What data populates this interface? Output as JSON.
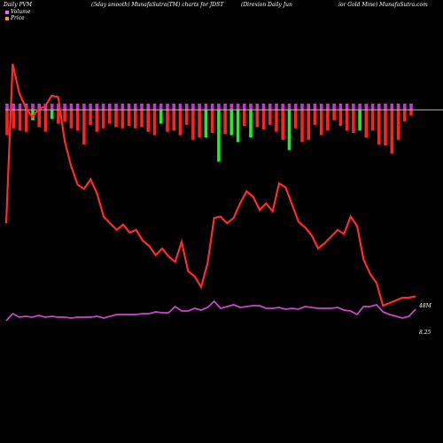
{
  "header": {
    "left": "Daily PVM",
    "smooth": "(5day smooth) MunafaSutra(TM) charts for JDST",
    "company_a": "(Direxion  Daily Jun",
    "company_b": "ior Gold Mine) MunafaSutra.com"
  },
  "legend": {
    "volume_label": "Volume",
    "volume_color": "#ee66ee",
    "price_label": "Price",
    "price_color": "#ff9933"
  },
  "chart_data": {
    "type": "line",
    "ticker": "JDST",
    "volume_axis_label": "48M",
    "price_axis_label": "8.25",
    "colors": {
      "price": "#ff2a2a",
      "volume_line": "#cc44cc",
      "bar_up": "#22ee22",
      "bar_down": "#ff2222",
      "bar_top": "#cc33cc",
      "baseline": "#bbbbbb"
    },
    "series": [
      {
        "values": [
          14.6,
          26.6,
          24.4,
          23.3,
          22.6,
          23.2,
          23.4,
          24.2,
          24.1,
          20.8,
          18.9,
          17.5,
          17.2,
          17.9,
          16.8,
          15.1,
          14.6,
          14.1,
          14.5,
          13.9,
          14.1,
          13.3,
          12.9,
          12.2,
          12.7,
          12.1,
          11.7,
          13.2,
          11.0,
          10.6,
          9.8,
          11.6,
          15.0,
          15.1,
          14.6,
          15.0,
          16.1,
          17.0,
          16.6,
          15.6,
          16.1,
          15.5,
          17.6,
          17.3,
          16.0,
          14.7,
          14.3,
          13.7,
          12.7,
          13.1,
          13.6,
          14.1,
          13.8,
          15.1,
          14.4,
          11.9,
          10.8,
          10.1,
          8.4,
          8.6,
          8.8,
          9.0,
          9.0,
          9.1
        ]
      },
      {
        "values": [
          1.2,
          2.0,
          1.6,
          1.7,
          1.6,
          1.8,
          1.6,
          1.7,
          1.6,
          1.6,
          1.5,
          1.6,
          1.6,
          1.6,
          1.7,
          1.5,
          1.7,
          1.9,
          1.9,
          1.9,
          1.9,
          2.0,
          2.0,
          2.2,
          2.1,
          2.1,
          2.8,
          2.3,
          2.3,
          2.6,
          2.4,
          2.7,
          3.4,
          2.6,
          2.8,
          3.0,
          2.7,
          2.8,
          2.9,
          2.9,
          2.6,
          2.6,
          2.7,
          2.5,
          2.6,
          2.5,
          2.8,
          2.7,
          2.6,
          2.6,
          2.6,
          2.7,
          2.4,
          2.3,
          1.9,
          2.8,
          2.8,
          3.0,
          2.2,
          1.9,
          1.7,
          1.5,
          1.7,
          2.5
        ]
      }
    ],
    "volume_bars": [
      {
        "v": 2.2,
        "up": false
      },
      {
        "v": 1.6,
        "up": false
      },
      {
        "v": 1.8,
        "up": false
      },
      {
        "v": 1.9,
        "up": false
      },
      {
        "v": 0.9,
        "up": true
      },
      {
        "v": 1.5,
        "up": false
      },
      {
        "v": 1.9,
        "up": false
      },
      {
        "v": 0.8,
        "up": true
      },
      {
        "v": 1.2,
        "up": false
      },
      {
        "v": 1.0,
        "up": false
      },
      {
        "v": 1.6,
        "up": false
      },
      {
        "v": 1.8,
        "up": false
      },
      {
        "v": 3.0,
        "up": false
      },
      {
        "v": 1.3,
        "up": false
      },
      {
        "v": 1.9,
        "up": false
      },
      {
        "v": 1.6,
        "up": false
      },
      {
        "v": 1.2,
        "up": false
      },
      {
        "v": 1.5,
        "up": false
      },
      {
        "v": 1.6,
        "up": false
      },
      {
        "v": 1.4,
        "up": false
      },
      {
        "v": 1.6,
        "up": false
      },
      {
        "v": 1.5,
        "up": false
      },
      {
        "v": 1.9,
        "up": false
      },
      {
        "v": 2.2,
        "up": false
      },
      {
        "v": 1.2,
        "up": true
      },
      {
        "v": 1.9,
        "up": false
      },
      {
        "v": 1.8,
        "up": false
      },
      {
        "v": 2.2,
        "up": false
      },
      {
        "v": 1.3,
        "up": false
      },
      {
        "v": 2.6,
        "up": false
      },
      {
        "v": 2.4,
        "up": false
      },
      {
        "v": 2.4,
        "up": true
      },
      {
        "v": 2.0,
        "up": false
      },
      {
        "v": 4.5,
        "up": true
      },
      {
        "v": 2.1,
        "up": false
      },
      {
        "v": 2.2,
        "up": true
      },
      {
        "v": 2.8,
        "up": true
      },
      {
        "v": 1.4,
        "up": false
      },
      {
        "v": 2.4,
        "up": true
      },
      {
        "v": 1.5,
        "up": false
      },
      {
        "v": 1.7,
        "up": false
      },
      {
        "v": 1.3,
        "up": false
      },
      {
        "v": 1.9,
        "up": false
      },
      {
        "v": 2.6,
        "up": false
      },
      {
        "v": 3.5,
        "up": true
      },
      {
        "v": 1.6,
        "up": false
      },
      {
        "v": 2.8,
        "up": false
      },
      {
        "v": 2.6,
        "up": false
      },
      {
        "v": 1.3,
        "up": false
      },
      {
        "v": 2.2,
        "up": false
      },
      {
        "v": 1.8,
        "up": false
      },
      {
        "v": 0.9,
        "up": false
      },
      {
        "v": 1.4,
        "up": false
      },
      {
        "v": 1.8,
        "up": false
      },
      {
        "v": 2.0,
        "up": false
      },
      {
        "v": 1.8,
        "up": true
      },
      {
        "v": 2.4,
        "up": false
      },
      {
        "v": 1.8,
        "up": false
      },
      {
        "v": 3.0,
        "up": false
      },
      {
        "v": 3.1,
        "up": false
      },
      {
        "v": 3.8,
        "up": false
      },
      {
        "v": 2.6,
        "up": false
      },
      {
        "v": 1.0,
        "up": false
      },
      {
        "v": 0.5,
        "up": false
      }
    ]
  }
}
